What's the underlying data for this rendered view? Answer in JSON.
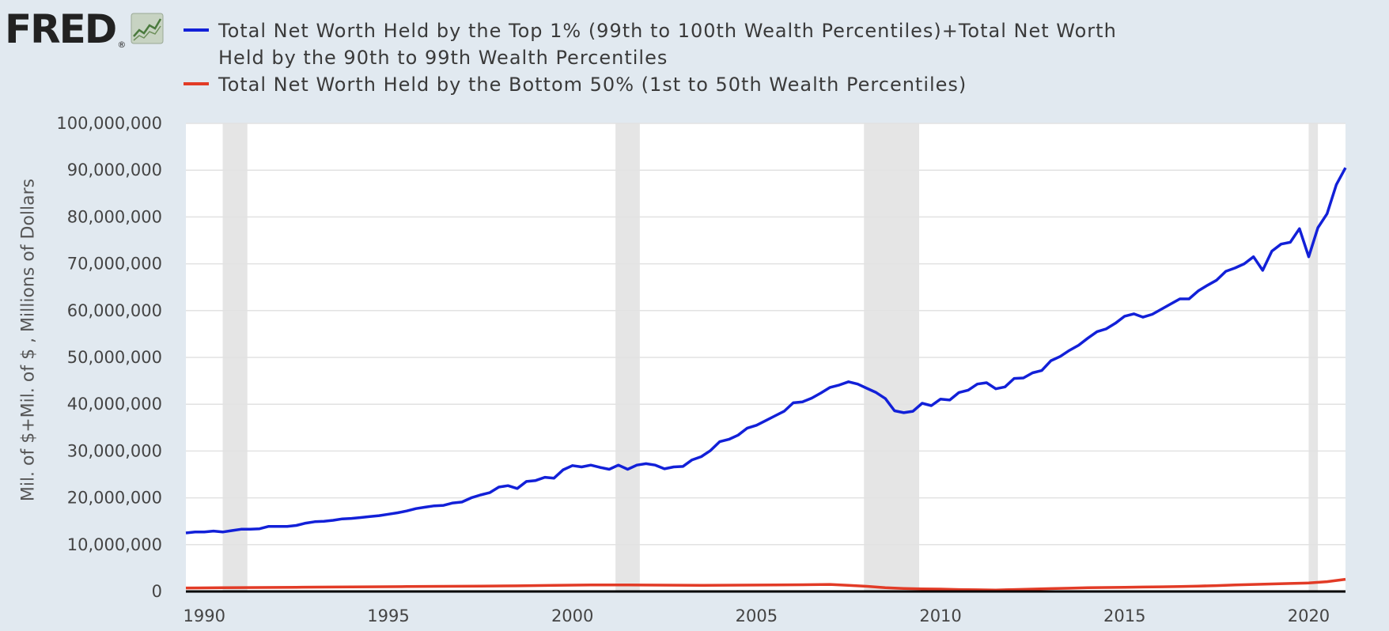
{
  "logo": {
    "text": "FRED",
    "registered": "®"
  },
  "chart_data": {
    "type": "line",
    "title": "",
    "xlabel": "",
    "ylabel": "Mil. of $+Mil. of $ , Millions of Dollars",
    "xlim": [
      1989.5,
      2021.0
    ],
    "ylim": [
      0,
      100000000
    ],
    "yticks": [
      0,
      10000000,
      20000000,
      30000000,
      40000000,
      50000000,
      60000000,
      70000000,
      80000000,
      90000000,
      100000000
    ],
    "ytick_labels": [
      "0",
      "10,000,000",
      "20,000,000",
      "30,000,000",
      "40,000,000",
      "50,000,000",
      "60,000,000",
      "70,000,000",
      "80,000,000",
      "90,000,000",
      "100,000,000"
    ],
    "xticks": [
      1990,
      1995,
      2000,
      2005,
      2010,
      2015,
      2020
    ],
    "xtick_labels": [
      "1990",
      "1995",
      "2000",
      "2005",
      "2010",
      "2015",
      "2020"
    ],
    "grid": true,
    "recessions": [
      [
        1990.5,
        1991.17
      ],
      [
        2001.17,
        2001.83
      ],
      [
        2007.92,
        2009.42
      ],
      [
        2020.0,
        2020.25
      ]
    ],
    "series": [
      {
        "name": "Total Net Worth Held by the Top 1% (99th to 100th Wealth Percentiles)+Total Net Worth Held by the 90th to 99th Wealth Percentiles",
        "color": "#1220d8",
        "x": [
          1989.5,
          1989.75,
          1990.0,
          1990.25,
          1990.5,
          1990.75,
          1991.0,
          1991.25,
          1991.5,
          1991.75,
          1992.0,
          1992.25,
          1992.5,
          1992.75,
          1993.0,
          1993.25,
          1993.5,
          1993.75,
          1994.0,
          1994.25,
          1994.5,
          1994.75,
          1995.0,
          1995.25,
          1995.5,
          1995.75,
          1996.0,
          1996.25,
          1996.5,
          1996.75,
          1997.0,
          1997.25,
          1997.5,
          1997.75,
          1998.0,
          1998.25,
          1998.5,
          1998.75,
          1999.0,
          1999.25,
          1999.5,
          1999.75,
          2000.0,
          2000.25,
          2000.5,
          2000.75,
          2001.0,
          2001.25,
          2001.5,
          2001.75,
          2002.0,
          2002.25,
          2002.5,
          2002.75,
          2003.0,
          2003.25,
          2003.5,
          2003.75,
          2004.0,
          2004.25,
          2004.5,
          2004.75,
          2005.0,
          2005.25,
          2005.5,
          2005.75,
          2006.0,
          2006.25,
          2006.5,
          2006.75,
          2007.0,
          2007.25,
          2007.5,
          2007.75,
          2008.0,
          2008.25,
          2008.5,
          2008.75,
          2009.0,
          2009.25,
          2009.5,
          2009.75,
          2010.0,
          2010.25,
          2010.5,
          2010.75,
          2011.0,
          2011.25,
          2011.5,
          2011.75,
          2012.0,
          2012.25,
          2012.5,
          2012.75,
          2013.0,
          2013.25,
          2013.5,
          2013.75,
          2014.0,
          2014.25,
          2014.5,
          2014.75,
          2015.0,
          2015.25,
          2015.5,
          2015.75,
          2016.0,
          2016.25,
          2016.5,
          2016.75,
          2017.0,
          2017.25,
          2017.5,
          2017.75,
          2018.0,
          2018.25,
          2018.5,
          2018.75,
          2019.0,
          2019.25,
          2019.5,
          2019.75,
          2020.0,
          2020.25,
          2020.5,
          2020.75,
          2021.0
        ],
        "values": [
          12500000,
          12700000,
          12700000,
          12900000,
          12700000,
          13000000,
          13300000,
          13300000,
          13400000,
          13900000,
          13900000,
          13900000,
          14100000,
          14600000,
          14900000,
          15000000,
          15200000,
          15500000,
          15600000,
          15800000,
          16000000,
          16200000,
          16500000,
          16800000,
          17200000,
          17700000,
          18000000,
          18300000,
          18400000,
          18900000,
          19100000,
          20000000,
          20600000,
          21100000,
          22300000,
          22600000,
          22000000,
          23500000,
          23700000,
          24400000,
          24200000,
          26000000,
          26900000,
          26600000,
          27000000,
          26500000,
          26100000,
          27000000,
          26100000,
          27000000,
          27300000,
          27000000,
          26200000,
          26600000,
          26700000,
          28100000,
          28800000,
          30100000,
          32000000,
          32500000,
          33400000,
          34900000,
          35500000,
          36500000,
          37500000,
          38500000,
          40300000,
          40500000,
          41300000,
          42400000,
          43600000,
          44100000,
          44800000,
          44300000,
          43400000,
          42500000,
          41200000,
          38600000,
          38200000,
          38500000,
          40200000,
          39700000,
          41100000,
          40900000,
          42500000,
          43000000,
          44300000,
          44600000,
          43300000,
          43700000,
          45500000,
          45600000,
          46700000,
          47200000,
          49300000,
          50200000,
          51500000,
          52600000,
          54100000,
          55500000,
          56100000,
          57300000,
          58800000,
          59300000,
          58600000,
          59200000,
          60300000,
          61400000,
          62500000,
          62500000,
          64200000,
          65400000,
          66500000,
          68400000,
          69100000,
          70000000,
          71500000,
          68600000,
          72700000,
          74200000,
          74600000,
          77500000,
          71500000,
          77700000,
          80700000,
          86900000,
          90500000
        ]
      },
      {
        "name": "Total Net Worth Held by the Bottom 50% (1st to 50th Wealth Percentiles)",
        "color": "#e23b26",
        "x": [
          1989.5,
          1990.5,
          1991.5,
          1992.5,
          1993.5,
          1994.5,
          1995.5,
          1996.5,
          1997.5,
          1998.5,
          1999.5,
          2000.5,
          2001.5,
          2002.5,
          2003.5,
          2004.5,
          2005.5,
          2006.5,
          2007.0,
          2007.5,
          2008.0,
          2008.5,
          2009.0,
          2009.5,
          2010.0,
          2010.5,
          2011.0,
          2011.5,
          2012.0,
          2012.5,
          2013.0,
          2013.5,
          2014.0,
          2014.5,
          2015.0,
          2015.5,
          2016.0,
          2016.5,
          2017.0,
          2017.5,
          2018.0,
          2018.5,
          2019.0,
          2019.5,
          2020.0,
          2020.5,
          2021.0
        ],
        "values": [
          750000,
          800000,
          850000,
          900000,
          950000,
          1000000,
          1050000,
          1100000,
          1150000,
          1200000,
          1300000,
          1400000,
          1400000,
          1350000,
          1300000,
          1350000,
          1400000,
          1450000,
          1500000,
          1300000,
          1100000,
          800000,
          650000,
          550000,
          500000,
          400000,
          350000,
          300000,
          400000,
          500000,
          600000,
          700000,
          800000,
          850000,
          900000,
          950000,
          1000000,
          1050000,
          1150000,
          1250000,
          1400000,
          1500000,
          1600000,
          1700000,
          1800000,
          2100000,
          2600000
        ]
      }
    ]
  },
  "legend": {
    "items": [
      {
        "label_line1": "Total Net Worth Held by the Top 1% (99th to 100th Wealth Percentiles)+Total Net Worth",
        "label_line2": "Held by the 90th to 99th Wealth Percentiles",
        "color": "#1220d8"
      },
      {
        "label_line1": "Total Net Worth Held by the Bottom 50% (1st to 50th Wealth Percentiles)",
        "label_line2": "",
        "color": "#e23b26"
      }
    ]
  }
}
